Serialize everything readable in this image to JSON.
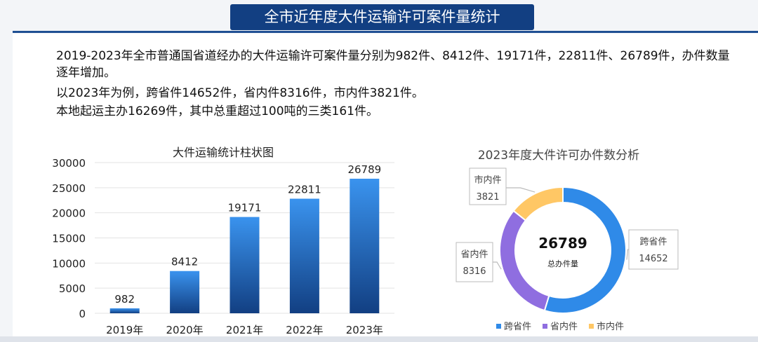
{
  "header": {
    "title": "全市近年度大件运输许可案件量统计"
  },
  "paragraphs": [
    "2019-2023年全市普通国省道经办的大件运输许可案件量分别为982件、8412件、19171件，22811件、26789件，办件数量逐年增加。",
    "以2023年为例，跨省件14652件，省内件8316件，市内件3821件。",
    "本地起运主办16269件，其中总重超过100吨的三类161件。"
  ],
  "chart_data": [
    {
      "type": "bar",
      "title": "大件运输统计柱状图",
      "categories": [
        "2019年",
        "2020年",
        "2021年",
        "2022年",
        "2023年"
      ],
      "values": [
        982,
        8412,
        19171,
        22811,
        26789
      ],
      "yticks": [
        0,
        5000,
        10000,
        15000,
        20000,
        25000,
        30000
      ],
      "ylim": [
        0,
        30000
      ],
      "grid": true,
      "colors": {
        "bar_top": "#3a93ee",
        "bar_bottom": "#123f82"
      }
    },
    {
      "type": "pie",
      "title": "2023年度大件许可办件数分析",
      "center_value": "26789",
      "center_label": "总办件量",
      "labels": [
        "跨省件",
        "省内件",
        "市内件"
      ],
      "values": [
        14652,
        8316,
        3821
      ],
      "colors": [
        "#2f8ae8",
        "#8f6ee0",
        "#ffc765"
      ],
      "legend_position": "bottom"
    }
  ]
}
